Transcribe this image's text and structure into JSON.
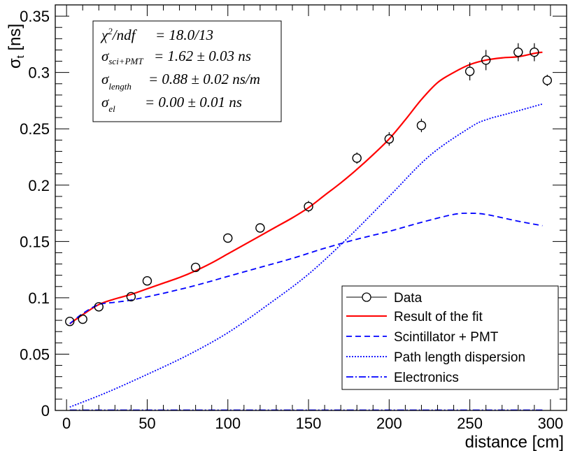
{
  "chart_data": {
    "type": "scatter",
    "xlabel": "distance [cm]",
    "ylabel_symbol": "σ",
    "ylabel_sub": "t",
    "ylabel_unit": "[ns]",
    "xlim": [
      -7,
      310
    ],
    "ylim": [
      0,
      0.36
    ],
    "x_ticks": [
      0,
      50,
      100,
      150,
      200,
      250,
      300
    ],
    "x_tick_labels": [
      "0",
      "50",
      "100",
      "150",
      "200",
      "250",
      "300"
    ],
    "y_ticks": [
      0,
      0.05,
      0.1,
      0.15,
      0.2,
      0.25,
      0.3,
      0.35
    ],
    "y_tick_labels": [
      "0",
      "0.05",
      "0.1",
      "0.15",
      "0.2",
      "0.25",
      "0.3",
      "0.35"
    ],
    "grid": false,
    "stats_box": {
      "lines": [
        {
          "symbol": "χ",
          "sup": "2",
          "name": "/ndf",
          "sub": "",
          "text": "=  18.0/13"
        },
        {
          "symbol": "σ",
          "sup": "",
          "name": "",
          "sub": "sci+PMT",
          "text": "= 1.62 ± 0.03 ns"
        },
        {
          "symbol": "σ",
          "sup": "",
          "name": "",
          "sub": "length",
          "text": "= 0.88 ± 0.02 ns/m"
        },
        {
          "symbol": "σ",
          "sup": "",
          "name": "",
          "sub": "el",
          "text": "= 0.00 ± 0.01 ns"
        }
      ]
    },
    "legend": {
      "position": "bottom-right",
      "entries": [
        "Data",
        "Result of the fit",
        "Scintillator + PMT",
        "Path length dispersion",
        "Electronics"
      ]
    },
    "series": [
      {
        "name": "Data",
        "style": "markers",
        "color": "#000000",
        "points": [
          {
            "x": 2,
            "y": 0.079,
            "err": 0.003
          },
          {
            "x": 10,
            "y": 0.081,
            "err": 0.003
          },
          {
            "x": 20,
            "y": 0.092,
            "err": 0.003
          },
          {
            "x": 40,
            "y": 0.101,
            "err": 0.003
          },
          {
            "x": 50,
            "y": 0.115,
            "err": 0.003
          },
          {
            "x": 80,
            "y": 0.127,
            "err": 0.004
          },
          {
            "x": 100,
            "y": 0.153,
            "err": 0.004
          },
          {
            "x": 120,
            "y": 0.162,
            "err": 0.004
          },
          {
            "x": 150,
            "y": 0.181,
            "err": 0.005
          },
          {
            "x": 180,
            "y": 0.224,
            "err": 0.005
          },
          {
            "x": 200,
            "y": 0.241,
            "err": 0.006
          },
          {
            "x": 220,
            "y": 0.253,
            "err": 0.006
          },
          {
            "x": 250,
            "y": 0.301,
            "err": 0.008
          },
          {
            "x": 260,
            "y": 0.311,
            "err": 0.009
          },
          {
            "x": 280,
            "y": 0.318,
            "err": 0.008
          },
          {
            "x": 290,
            "y": 0.318,
            "err": 0.008
          },
          {
            "x": 298,
            "y": 0.293,
            "err": 0.005
          }
        ]
      },
      {
        "name": "Result of the fit",
        "style": "solid",
        "color": "#ff0000",
        "x": [
          2,
          10,
          20,
          30,
          40,
          50,
          60,
          70,
          80,
          90,
          100,
          110,
          120,
          130,
          140,
          150,
          160,
          170,
          180,
          190,
          200,
          210,
          220,
          230,
          240,
          250,
          260,
          270,
          280,
          290,
          295
        ],
        "y": [
          0.077,
          0.085,
          0.094,
          0.099,
          0.103,
          0.108,
          0.113,
          0.118,
          0.124,
          0.131,
          0.139,
          0.147,
          0.155,
          0.163,
          0.171,
          0.18,
          0.191,
          0.202,
          0.214,
          0.227,
          0.241,
          0.258,
          0.276,
          0.291,
          0.3,
          0.307,
          0.311,
          0.313,
          0.314,
          0.317,
          0.318
        ]
      },
      {
        "name": "Scintillator + PMT",
        "style": "dashed",
        "color": "#0000ff",
        "x": [
          2,
          10,
          20,
          30,
          40,
          60,
          80,
          100,
          120,
          140,
          160,
          180,
          200,
          220,
          240,
          250,
          260,
          280,
          295
        ],
        "y": [
          0.077,
          0.086,
          0.094,
          0.096,
          0.098,
          0.104,
          0.111,
          0.119,
          0.127,
          0.135,
          0.144,
          0.152,
          0.159,
          0.167,
          0.174,
          0.175,
          0.174,
          0.168,
          0.164
        ]
      },
      {
        "name": "Path length dispersion",
        "style": "dotted",
        "color": "#0000ff",
        "x": [
          2,
          25,
          50,
          75,
          100,
          125,
          150,
          175,
          200,
          225,
          250,
          260,
          275,
          295
        ],
        "y": [
          0.003,
          0.016,
          0.032,
          0.049,
          0.069,
          0.094,
          0.121,
          0.154,
          0.19,
          0.226,
          0.251,
          0.258,
          0.264,
          0.272
        ]
      },
      {
        "name": "Electronics",
        "style": "dashdot",
        "color": "#0000ff",
        "x": [
          2,
          295
        ],
        "y": [
          0.0003,
          0.0003
        ]
      }
    ]
  }
}
